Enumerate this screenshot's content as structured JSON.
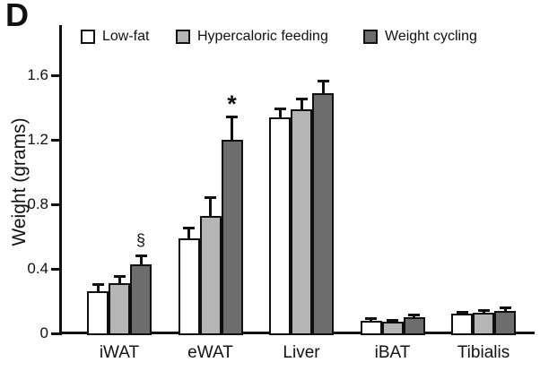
{
  "panel_label": "D",
  "y_axis": {
    "title": "Weight (grams)",
    "tick_labels": [
      "0",
      "0.4",
      "0.8",
      "1.2",
      "1.6"
    ],
    "tick_values": [
      0,
      0.4,
      0.8,
      1.2,
      1.6
    ]
  },
  "chart_data": {
    "type": "bar",
    "title": "",
    "ylabel": "Weight (grams)",
    "ylim": [
      0,
      1.8
    ],
    "grid": false,
    "legend_position": "top",
    "categories": [
      "iWAT",
      "eWAT",
      "Liver",
      "iBAT",
      "Tibialis"
    ],
    "series": [
      {
        "name": "Low-fat",
        "color": "#ffffff",
        "values": [
          0.26,
          0.59,
          1.34,
          0.08,
          0.12
        ],
        "errors": [
          0.04,
          0.06,
          0.05,
          0.01,
          0.01
        ]
      },
      {
        "name": "Hypercaloric feeding",
        "color": "#b5b5b5",
        "values": [
          0.31,
          0.73,
          1.39,
          0.07,
          0.13
        ],
        "errors": [
          0.04,
          0.11,
          0.06,
          0.01,
          0.01
        ]
      },
      {
        "name": "Weight cycling",
        "color": "#6d6d6d",
        "values": [
          0.43,
          1.2,
          1.49,
          0.1,
          0.14
        ],
        "errors": [
          0.05,
          0.14,
          0.07,
          0.01,
          0.015
        ]
      }
    ],
    "annotations": [
      {
        "symbol": "§",
        "category": "iWAT",
        "series": "Weight cycling"
      },
      {
        "symbol": "*",
        "category": "eWAT",
        "series": "Weight cycling"
      }
    ]
  }
}
